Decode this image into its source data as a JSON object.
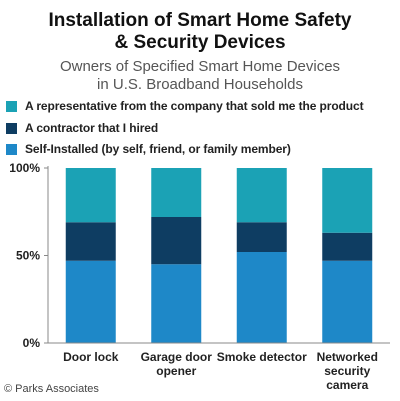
{
  "title_line1": "Installation of Smart Home Safety",
  "title_line2": "& Security Devices",
  "subtitle_line1": "Owners of Specified Smart Home Devices",
  "subtitle_line2": "in U.S. Broadband Households",
  "credit": "© Parks Associates",
  "colors": {
    "representative": "#1ba2b5",
    "contractor": "#0e3d62",
    "self": "#1e88c8"
  },
  "chart_data": {
    "type": "bar",
    "stacked": true,
    "title": "Installation of Smart Home Safety & Security Devices",
    "subtitle": "Owners of Specified Smart Home Devices in U.S. Broadband Households",
    "categories": [
      [
        "Door lock"
      ],
      [
        "Garage door",
        "opener"
      ],
      [
        "Smoke detector"
      ],
      [
        "Networked",
        "security",
        "camera"
      ]
    ],
    "series": [
      {
        "name": "Self-Installed (by self, friend, or family member)",
        "color": "#1e88c8",
        "values": [
          47,
          45,
          52,
          47
        ]
      },
      {
        "name": "A contractor that I hired",
        "color": "#0e3d62",
        "values": [
          22,
          27,
          17,
          16
        ]
      },
      {
        "name": "A representative from the company that sold me the product",
        "color": "#1ba2b5",
        "values": [
          31,
          28,
          31,
          37
        ]
      }
    ],
    "legend_order": [
      2,
      1,
      0
    ],
    "legend_placement": "top-left",
    "ylim": [
      0,
      100
    ],
    "yticks": [
      "0%",
      "50%",
      "100%"
    ],
    "ytick_values": [
      0,
      50,
      100
    ],
    "grid": false
  }
}
